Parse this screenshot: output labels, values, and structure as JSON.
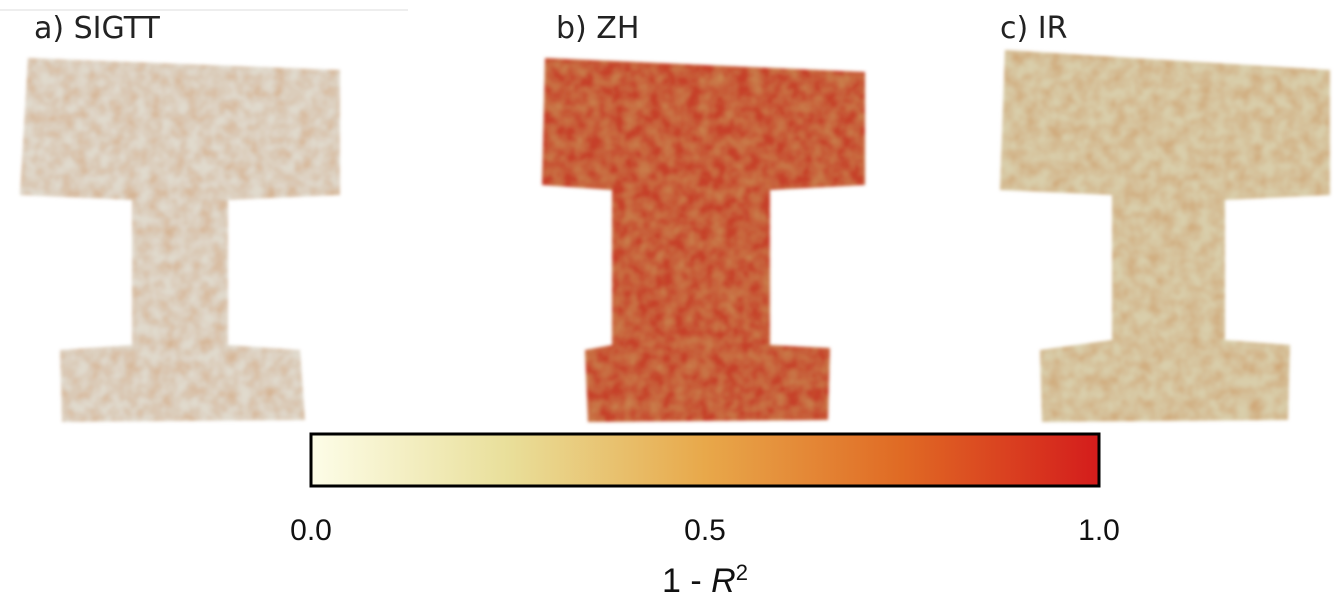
{
  "panels": [
    {
      "label": "a) SIGTT"
    },
    {
      "label": "b) ZH"
    },
    {
      "label": "c) IR"
    }
  ],
  "colorbar": {
    "colormap": [
      "#fdfde8",
      "#e9df9a",
      "#e8a84a",
      "#e06a24",
      "#d41c1c"
    ],
    "clim": [
      0,
      1
    ],
    "ticks": [
      {
        "value": 0,
        "label": "0.0"
      },
      {
        "value": 0.5,
        "label": "0.5"
      },
      {
        "value": 1,
        "label": "1.0"
      }
    ],
    "label": {
      "prefix": "1 - ",
      "symbol": "R",
      "exponent": "2"
    }
  }
}
